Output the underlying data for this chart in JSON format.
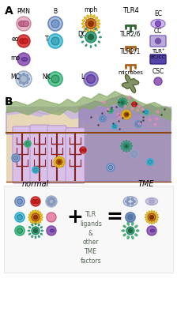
{
  "bg_color": "#ffffff",
  "panel_A_label": "A",
  "panel_B_label": "B",
  "section_A": {
    "col1_labels": [
      "PMN",
      "eo",
      "mo",
      "MC"
    ],
    "col1_colors": [
      "#c47094",
      "#c83030",
      "#8855aa",
      "#c8d8e8"
    ],
    "col2_labels": [
      "B",
      "T",
      "",
      "NK"
    ],
    "col2_colors": [
      "#6699cc",
      "#44aacc",
      "",
      "#55bb88"
    ],
    "col3_labels": [
      "mph",
      "DC",
      "",
      "L"
    ],
    "col3_colors": [
      "#e8a830",
      "#44aa88",
      "",
      "#8877cc"
    ],
    "col4_labels": [
      "TLR4",
      "TLR2/6",
      "TLR2/1",
      "microbes"
    ],
    "col4_icon_color": "#336633",
    "col5_labels": [
      "EC",
      "CC",
      "TLR+\nEC/CC",
      "CSC"
    ],
    "col5_colors": [
      "#9988cc",
      "#8877bb",
      "#5544aa",
      "#8866cc"
    ]
  },
  "normal_label": "normal",
  "tme_label": "TME",
  "equation_text": "TLR\nligands\n&\nother\nTME\nfactors"
}
